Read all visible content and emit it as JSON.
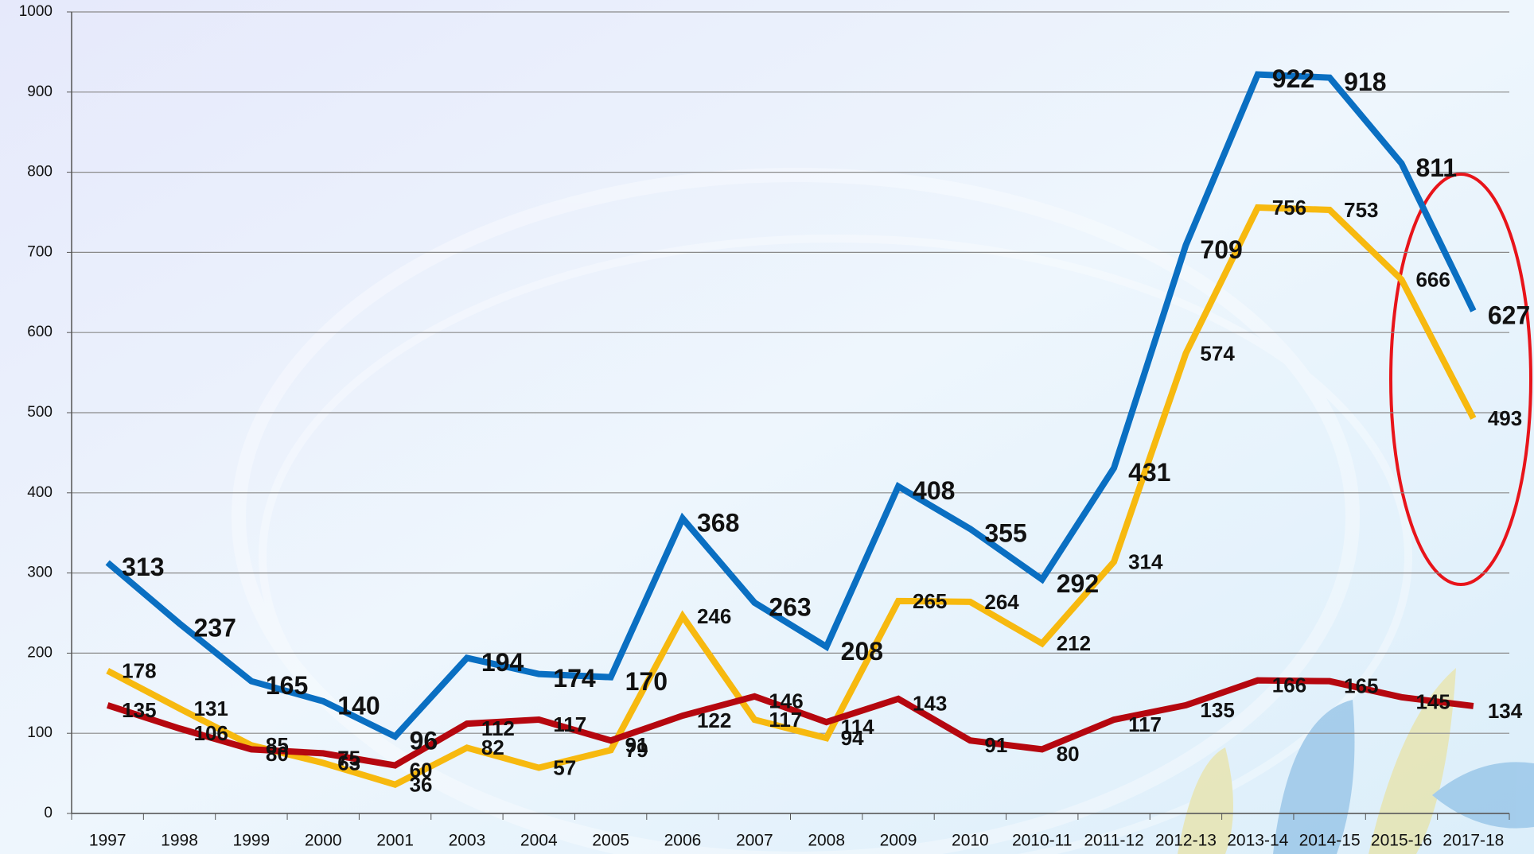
{
  "chart_data": {
    "type": "line",
    "categories": [
      "1997",
      "1998",
      "1999",
      "2000",
      "2001",
      "2003",
      "2004",
      "2005",
      "2006",
      "2007",
      "2008",
      "2009",
      "2010",
      "2010-11",
      "2011-12",
      "2012-13",
      "2013-14",
      "2014-15",
      "2015-16",
      "2017-18"
    ],
    "series": [
      {
        "color": "#0a6fc2",
        "values": [
          313,
          237,
          165,
          140,
          96,
          194,
          174,
          170,
          368,
          263,
          208,
          408,
          355,
          292,
          431,
          709,
          922,
          918,
          811,
          627
        ]
      },
      {
        "color": "#f7b90f",
        "values": [
          178,
          131,
          85,
          63,
          36,
          82,
          57,
          79,
          246,
          117,
          94,
          265,
          264,
          212,
          314,
          574,
          756,
          753,
          666,
          493
        ]
      },
      {
        "color": "#b5070f",
        "values": [
          135,
          106,
          80,
          75,
          60,
          112,
          117,
          91,
          122,
          146,
          114,
          143,
          91,
          80,
          117,
          135,
          166,
          165,
          145,
          134
        ]
      }
    ],
    "ylim": [
      0,
      1000
    ],
    "yticks": [
      0,
      100,
      200,
      300,
      400,
      500,
      600,
      700,
      800,
      900,
      1000
    ],
    "grid": true
  }
}
